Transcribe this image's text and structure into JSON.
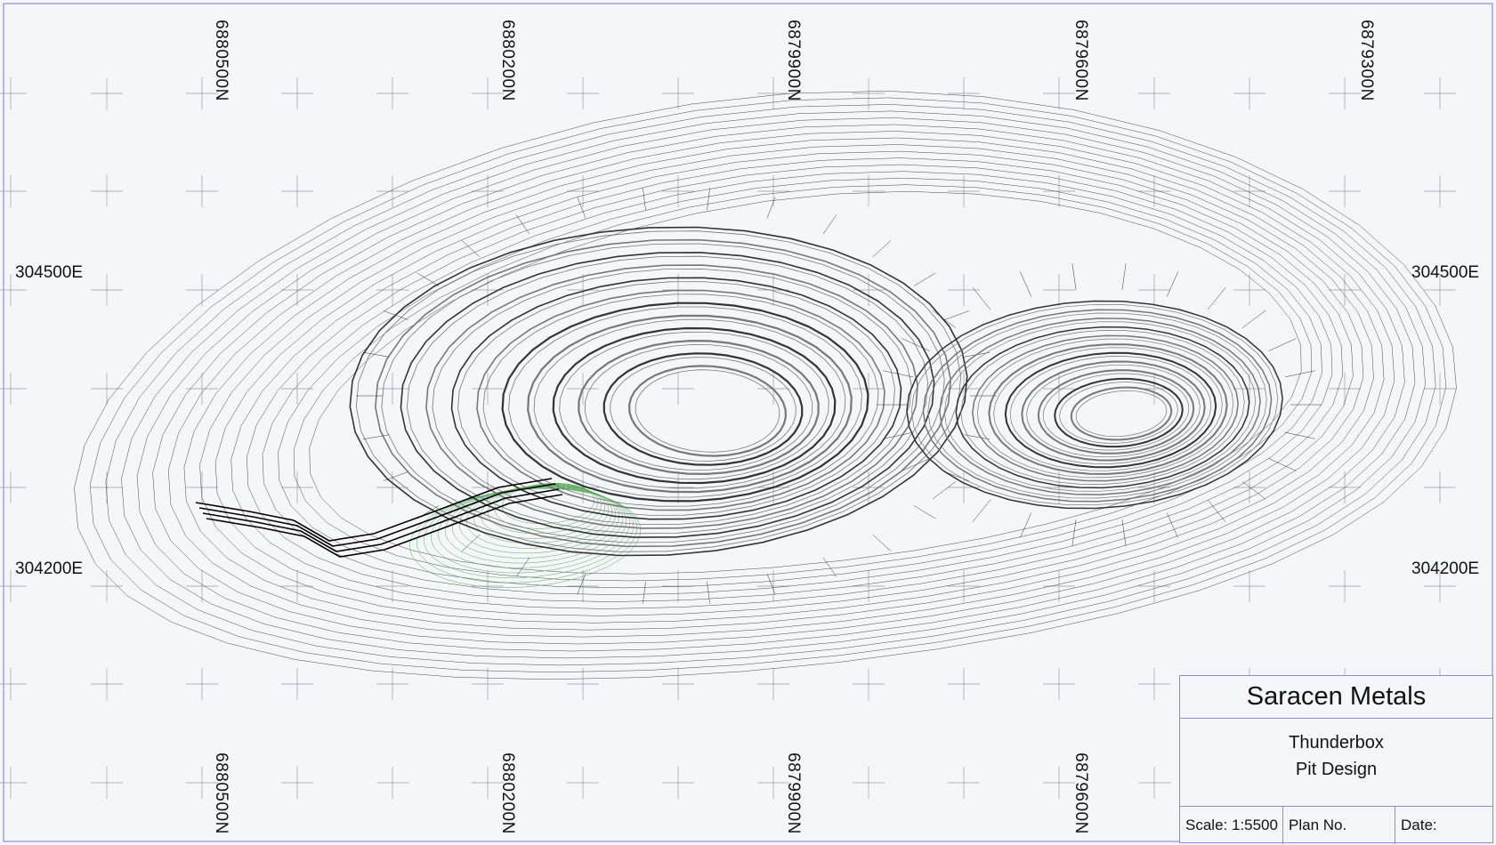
{
  "map": {
    "northing_labels": [
      "6880500N",
      "6880200N",
      "6879900N",
      "6879600N",
      "6879300N"
    ],
    "easting_labels": [
      "304500E",
      "304200E"
    ],
    "colors": {
      "background": "#f4f6fa",
      "grid": "#9a9aa6",
      "contour": "#333333",
      "contour_bold": "#000000",
      "contour_grey": "#777777",
      "old_pit": "#5aaa5a",
      "border": "#8d8de0"
    }
  },
  "title_block": {
    "company": "Saracen Metals",
    "project_line1": "Thunderbox",
    "project_line2": "Pit Design",
    "scale": "Scale: 1:5500",
    "plan_no": "Plan No.",
    "date": "Date:"
  }
}
